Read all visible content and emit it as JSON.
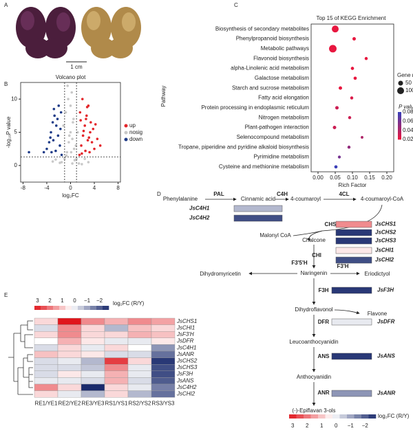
{
  "panels": {
    "a": "A",
    "b": "B",
    "c": "C",
    "d": "D",
    "e": "E"
  },
  "scale_bar": "1 cm",
  "chart_data": [
    {
      "type": "scatter",
      "title": "Volcano plot",
      "xlabel": "log₂FC",
      "ylabel": "-log₁₀P value",
      "xlim": [
        -8.4,
        8.4
      ],
      "ylim": [
        -2.5,
        12.5
      ],
      "xticks": [
        -8,
        -4,
        0,
        4,
        8
      ],
      "yticks": [
        0,
        5,
        10
      ],
      "thresholds": {
        "x": [
          -1,
          1
        ],
        "y": 1.3
      },
      "series": [
        {
          "name": "up",
          "color": "#e3262b",
          "x": [
            1.5,
            1.8,
            2.1,
            2.4,
            2.7,
            3.0,
            3.3,
            3.6,
            4.0,
            4.5,
            1.6,
            2.0,
            2.5,
            2.9,
            3.4,
            3.8,
            1.7,
            2.2,
            2.8,
            3.2,
            1.9,
            2.6,
            3.1,
            5.0,
            4.2
          ],
          "y": [
            1.6,
            3.0,
            4.5,
            6.0,
            7.5,
            9.0,
            5.0,
            3.5,
            2.5,
            4.0,
            8.0,
            10.0,
            2.2,
            3.8,
            6.5,
            5.5,
            6.8,
            5.2,
            8.8,
            2.0,
            1.8,
            7.0,
            4.2,
            3.0,
            6.2
          ]
        },
        {
          "name": "nosig",
          "color": "#c8c8c8",
          "x": [
            -1.5,
            -1.0,
            -0.6,
            -0.3,
            0,
            0.3,
            0.6,
            1.0,
            1.4,
            -1.2,
            -0.8,
            -0.4,
            0.2,
            0.5,
            0.9,
            1.2,
            -0.5,
            0,
            0.4,
            -0.2,
            0.1,
            -0.7,
            0.7,
            -1.8,
            1.9,
            -3,
            3,
            -2.5,
            2.4,
            0.3
          ],
          "y": [
            0.5,
            1,
            2,
            3.5,
            5,
            4,
            2.5,
            1,
            0.3,
            6,
            8,
            10,
            11,
            7,
            3,
            5,
            12,
            9,
            6.5,
            4.5,
            2,
            1.5,
            0.8,
            0.4,
            0.2,
            0.6,
            0.5,
            0.9,
            1.0,
            0.3
          ]
        },
        {
          "name": "down",
          "color": "#1f3c88",
          "x": [
            -1.5,
            -1.8,
            -2.1,
            -2.4,
            -2.7,
            -3.0,
            -3.3,
            -3.6,
            -4.0,
            -4.5,
            -1.6,
            -2.0,
            -2.5,
            -2.9,
            -3.4,
            -1.7,
            -2.2,
            -2.8,
            -3.2,
            -7.0
          ],
          "y": [
            1.6,
            3.0,
            4.5,
            6.0,
            7.5,
            6.5,
            5.0,
            3.5,
            2.5,
            2.0,
            8.0,
            9.0,
            2.2,
            3.8,
            4.2,
            5.5,
            7.0,
            8.5,
            2.0,
            2.0
          ]
        }
      ]
    },
    {
      "type": "dot",
      "title": "Top 15 of KEGG Enrichment",
      "xlabel": "Rich Factor",
      "ylabel": "Pathway",
      "categories": [
        "Biosynthesis of secondary metabolites",
        "Phenylpropanoid biosynthesis",
        "Metabolic pathways",
        "Flavonoid biosynthesis",
        "alpha-Linolenic acid metabolism",
        "Galactose metabolism",
        "Starch and sucrose metabolism",
        "Fatty acid elongation",
        "Protein processing in endoplasmic reticulum",
        "Nitrogen metabolism",
        "Plant-pathogen interaction",
        "Selenocompound metabolism",
        "Tropane, piperidine and pyridine alkaloid biosynthesis",
        "Pyrimidine metabolism",
        "Cysteine and methionine metabolism"
      ],
      "values": [
        0.05,
        0.105,
        0.043,
        0.14,
        0.1,
        0.108,
        0.065,
        0.098,
        0.055,
        0.092,
        0.048,
        0.128,
        0.09,
        0.062,
        0.052
      ],
      "gene_numbers": [
        100,
        25,
        120,
        20,
        22,
        22,
        25,
        20,
        25,
        20,
        25,
        15,
        20,
        18,
        22
      ],
      "p_values": [
        0.001,
        0.01,
        0.005,
        0.01,
        0.02,
        0.02,
        0.02,
        0.025,
        0.03,
        0.03,
        0.03,
        0.04,
        0.05,
        0.06,
        0.08
      ],
      "xlim": [
        -0.02,
        0.22
      ],
      "xticks": [
        {
          "value": 0,
          "label": "0.00"
        },
        {
          "value": 0.05,
          "label": "0.05"
        },
        {
          "value": 0.1,
          "label": "0.10"
        },
        {
          "value": 0.15,
          "label": "0.15"
        },
        {
          "value": 0.2,
          "label": "0.20"
        }
      ],
      "size_legend": {
        "title": "Gene number",
        "ticks": [
          50,
          100
        ]
      },
      "color_legend": {
        "title": "P value",
        "ticks": [
          0.08,
          0.06,
          0.04,
          0.02
        ],
        "colors": [
          "#3b3fb8",
          "#e8173f"
        ],
        "plim": [
          0.08,
          0.02
        ]
      }
    },
    {
      "type": "heatmap",
      "legend_title": "log₂FC (R/Y)",
      "clim": [
        -3,
        3
      ],
      "colors": [
        "#1a2a6c",
        "#ffffff",
        "#e0161c"
      ],
      "legend_ticks": [
        3,
        2,
        1,
        0,
        {
          "value": -1,
          "label": "−1"
        },
        {
          "value": -2,
          "label": "−2"
        }
      ],
      "columns": [
        "RE1/YE1",
        "RE2/YE2",
        "RE3/YE3",
        "RS1/YS1",
        "RS2/YS2",
        "RS3/YS3"
      ],
      "rows": [
        "JsCHS1",
        "JsCHI1",
        "JsF3'H",
        "JsDFR",
        "JsC4H1",
        "JsANR",
        "JsCHS2",
        "JsCHS3",
        "JsF3H",
        "JsANS",
        "JsC4H2",
        "JsCHI2"
      ],
      "values": [
        [
          0.5,
          3,
          1.5,
          1,
          1.5,
          1.2
        ],
        [
          -0.5,
          1.5,
          0.5,
          -1,
          0.8,
          0.5
        ],
        [
          0.5,
          1.5,
          0.5,
          0.5,
          1,
          0.8
        ],
        [
          0,
          1,
          0.3,
          -0.3,
          -0.3,
          0.3
        ],
        [
          -0.5,
          0.5,
          -0.3,
          0.5,
          0,
          -1.5
        ],
        [
          0.8,
          0.5,
          0.3,
          -0.5,
          -0.5,
          -2
        ],
        [
          -0.5,
          -0.3,
          -1,
          2.5,
          0.5,
          -2.8
        ],
        [
          -0.5,
          -0.5,
          -0.8,
          1.5,
          -0.3,
          -2.5
        ],
        [
          -0.5,
          0.3,
          -0.3,
          1,
          -0.3,
          -2.5
        ],
        [
          -0.3,
          -0.3,
          -0.5,
          1,
          -0.5,
          -2.3
        ],
        [
          1.5,
          0.5,
          -3,
          0.5,
          -0.3,
          -1.8
        ],
        [
          0.5,
          -0.3,
          -1,
          0.5,
          -1,
          -2
        ]
      ]
    }
  ],
  "pathway": {
    "compounds": [
      "Phenylalanine",
      "Cinnamic acid",
      "4-coumaroyl",
      "4-coumaroyl-CoA",
      "Malonyl CoA",
      "Chalcone",
      "Naringenin",
      "Dihydromyricetin",
      "Eriodictyol",
      "Dihydroflavonol",
      "Flavone",
      "Leucoanthocyanidin",
      "Anthocyanidin",
      "(-)-Epiflavan 3-ols"
    ],
    "enzymes": [
      "PAL",
      "C4H",
      "4CL",
      "CHS",
      "CHI",
      "F3'5'H",
      "F3'H",
      "F3H",
      "DFR",
      "ANS",
      "ANR"
    ],
    "genes": [
      {
        "label": "JsC4H1",
        "value": -1
      },
      {
        "label": "JsC4H2",
        "value": -2.5
      },
      {
        "label": "JsCHS1",
        "value": 1.5
      },
      {
        "label": "JsCHS2",
        "value": -2.8
      },
      {
        "label": "JsCHS3",
        "value": -2.8
      },
      {
        "label": "JsCHI1",
        "value": 0.3
      },
      {
        "label": "JsCHI2",
        "value": -2.5
      },
      {
        "label": "JsF3H",
        "value": -2.8
      },
      {
        "label": "JsDFR",
        "value": -0.3
      },
      {
        "label": "JsANS",
        "value": -2.8
      },
      {
        "label": "JsANR",
        "value": -1.5
      }
    ]
  }
}
